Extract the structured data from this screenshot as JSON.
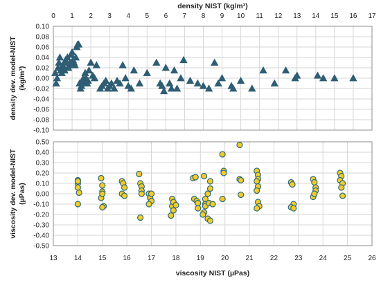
{
  "chart_data": [
    {
      "type": "scatter",
      "title": "",
      "xlabel": "density NIST (kg/m³)",
      "ylabel": "density dev. model-NIST (kg/m³)",
      "x_axis_position": "top",
      "xlim": [
        0,
        17
      ],
      "ylim": [
        -0.1,
        0.1
      ],
      "xticks": [
        "0",
        "1",
        "2",
        "3",
        "4",
        "5",
        "6",
        "7",
        "8",
        "9",
        "10",
        "11",
        "12",
        "13",
        "14",
        "15",
        "16",
        "17"
      ],
      "yticks": [
        "0.10",
        "0.08",
        "0.06",
        "0.04",
        "0.02",
        "0.00",
        "-0.02",
        "-0.04",
        "-0.06",
        "-0.08",
        "-0.10"
      ],
      "grid": true,
      "legend": "none",
      "marker": "triangle",
      "marker_color": "#2e5d74",
      "series": [
        {
          "x": [
            0.1,
            0.15,
            0.2,
            0.25,
            0.3,
            0.35,
            0.4,
            0.45,
            0.5,
            0.55,
            0.6,
            0.65,
            0.7,
            0.75,
            0.8,
            0.85,
            0.9,
            0.95,
            1.0,
            1.05,
            1.1,
            1.15,
            1.2,
            1.25,
            1.3,
            1.35,
            1.4,
            1.45,
            1.5,
            1.55,
            1.6,
            1.65,
            1.7,
            1.75,
            1.8,
            1.85,
            1.9,
            2.0,
            2.1,
            2.2,
            2.3,
            2.5,
            2.6,
            2.7,
            2.8,
            2.9,
            3.0,
            3.1,
            3.25,
            3.4,
            3.55,
            3.7,
            3.85,
            4.0,
            4.15,
            4.3,
            4.6,
            5.0,
            5.5,
            5.7,
            5.8,
            5.9,
            6.0,
            6.2,
            6.3,
            6.45,
            6.6,
            6.8,
            6.95,
            7.3,
            7.7,
            8.0,
            8.3,
            8.6,
            8.8,
            9.0,
            9.5,
            9.6,
            10.0,
            10.6,
            11.2,
            11.8,
            12.4,
            12.9,
            13.0,
            14.1,
            14.4,
            15.0,
            16.0
          ],
          "y": [
            0.01,
            -0.01,
            0.0,
            0.02,
            0.03,
            0.04,
            0.015,
            0.01,
            0.025,
            0.02,
            0.015,
            0.035,
            0.03,
            0.04,
            0.02,
            0.025,
            0.03,
            0.045,
            0.05,
            0.035,
            0.03,
            0.025,
            0.04,
            0.06,
            0.065,
            0.065,
            -0.01,
            -0.02,
            -0.015,
            -0.005,
            0.0,
            -0.01,
            0.01,
            0.0,
            -0.01,
            -0.005,
            0.015,
            0.03,
            0.005,
            0.0,
            0.025,
            -0.02,
            -0.015,
            -0.01,
            -0.005,
            -0.02,
            -0.015,
            -0.01,
            -0.02,
            -0.005,
            -0.01,
            0.025,
            0.0,
            -0.015,
            -0.02,
            0.015,
            -0.01,
            0.01,
            0.03,
            -0.01,
            -0.015,
            -0.025,
            0.02,
            -0.01,
            -0.02,
            0.015,
            -0.02,
            0.0,
            0.035,
            -0.005,
            -0.01,
            -0.015,
            -0.02,
            0.03,
            -0.01,
            0.0,
            -0.015,
            -0.02,
            -0.005,
            -0.02,
            0.015,
            -0.01,
            0.015,
            0.0,
            0.005,
            0.005,
            0.0,
            0.0,
            0.0
          ]
        }
      ]
    },
    {
      "type": "scatter",
      "title": "",
      "xlabel": "viscosity NIST (µPas)",
      "ylabel": "viscosity dev. model-NIST (µPas)",
      "xlim": [
        13,
        26
      ],
      "ylim": [
        -0.5,
        0.5
      ],
      "xticks": [
        "13",
        "14",
        "15",
        "16",
        "17",
        "18",
        "19",
        "20",
        "21",
        "22",
        "23",
        "24",
        "25",
        "26"
      ],
      "yticks": [
        "0.50",
        "0.40",
        "0.30",
        "0.20",
        "0.10",
        "0.00",
        "-0.10",
        "-0.20",
        "-0.30",
        "-0.40",
        "-0.50"
      ],
      "grid": true,
      "legend": "none",
      "marker": "circle",
      "marker_color": "#f2cc2a",
      "marker_edge_color": "#2f6b7a",
      "series": [
        {
          "x": [
            14.0,
            14.0,
            14.0,
            14.05,
            14.0,
            14.0,
            14.95,
            15.0,
            15.0,
            14.95,
            15.05,
            15.0,
            15.0,
            15.8,
            15.85,
            15.9,
            15.8,
            15.9,
            16.5,
            16.55,
            16.6,
            16.6,
            16.55,
            16.6,
            16.9,
            16.95,
            17.0,
            16.9,
            17.0,
            17.85,
            17.9,
            17.85,
            17.9,
            17.8,
            17.9,
            18.0,
            18.7,
            18.8,
            18.75,
            18.85,
            18.9,
            18.9,
            19.15,
            19.2,
            19.15,
            19.3,
            19.2,
            19.1,
            19.2,
            19.4,
            19.4,
            19.35,
            19.5,
            19.3,
            19.4,
            19.9,
            19.95,
            19.95,
            19.9,
            20.6,
            20.6,
            20.65,
            20.65,
            21.3,
            21.35,
            21.35,
            21.3,
            21.35,
            21.3,
            21.35,
            21.4,
            21.3,
            22.7,
            22.75,
            22.8,
            22.7,
            22.8,
            23.6,
            23.65,
            23.7,
            23.7,
            23.6,
            23.65,
            24.7,
            24.75,
            24.7,
            24.8,
            24.75,
            24.8
          ],
          "y": [
            0.13,
            0.1,
            0.06,
            0.01,
            -0.1,
            0.12,
            0.15,
            0.08,
            0.02,
            -0.04,
            -0.12,
            -0.13,
            0.0,
            0.12,
            0.1,
            0.06,
            0.0,
            -0.02,
            0.19,
            0.1,
            0.07,
            0.03,
            -0.23,
            0.0,
            0.0,
            -0.04,
            -0.07,
            -0.1,
            0.0,
            -0.05,
            -0.09,
            -0.12,
            -0.16,
            -0.21,
            -0.08,
            -0.11,
            0.15,
            0.16,
            -0.05,
            -0.07,
            -0.09,
            -0.14,
            0.17,
            -0.1,
            -0.18,
            0.0,
            -0.12,
            -0.2,
            -0.05,
            0.12,
            0.05,
            -0.09,
            -0.1,
            -0.24,
            -0.26,
            0.38,
            0.22,
            0.2,
            -0.05,
            0.47,
            0.14,
            0.13,
            -0.01,
            0.22,
            0.18,
            0.14,
            0.12,
            0.07,
            0.03,
            -0.08,
            -0.12,
            -0.14,
            0.11,
            0.09,
            -0.1,
            -0.13,
            -0.14,
            0.14,
            0.11,
            0.06,
            0.03,
            -0.03,
            0.0,
            0.2,
            0.17,
            0.13,
            0.1,
            0.06,
            -0.02
          ]
        }
      ]
    }
  ]
}
